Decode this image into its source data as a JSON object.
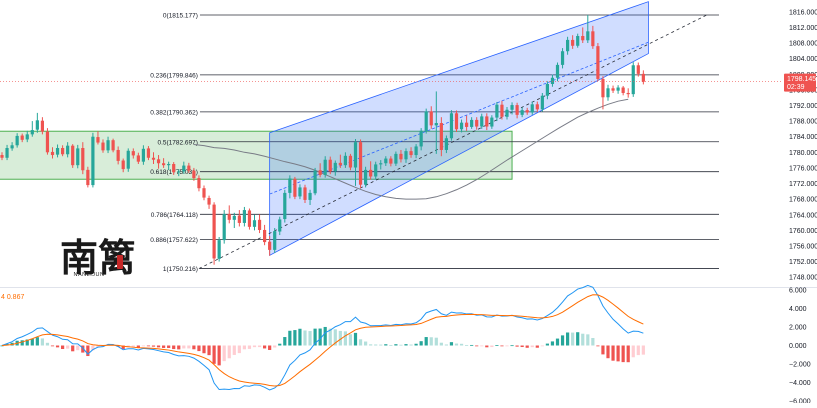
{
  "chart_data": [
    {
      "type": "candlestick",
      "y_axis_ticks": [
        "1816.000",
        "1812.000",
        "1808.000",
        "1804.000",
        "1800.000",
        "1796.000",
        "1792.000",
        "1788.000",
        "1784.000",
        "1780.000",
        "1776.000",
        "1772.000",
        "1768.000",
        "1764.000",
        "1760.000",
        "1756.000",
        "1752.000",
        "1748.000"
      ],
      "ylim": [
        1746.0,
        1818.0
      ],
      "price_tag": {
        "value": "1798.145",
        "countdown": "02:39"
      },
      "fib_levels": [
        {
          "label": "0(1815.177)",
          "value": 1815.177
        },
        {
          "label": "0.236(1799.846)",
          "value": 1799.846
        },
        {
          "label": "0.382(1790.362)",
          "value": 1790.362
        },
        {
          "label": "0.5(1782.697)",
          "value": 1782.697
        },
        {
          "label": "0.618(1775.031)",
          "value": 1775.031
        },
        {
          "label": "0.786(1764.118)",
          "value": 1764.118
        },
        {
          "label": "0.886(1757.622)",
          "value": 1757.622
        },
        {
          "label": "1(1750.216)",
          "value": 1750.216
        }
      ],
      "consolidation_box": {
        "from_bar": 0,
        "to_bar": 101,
        "high": 1785.4,
        "low": 1773.1
      },
      "channel": {
        "from_bar": 53,
        "to_bar": 128,
        "upper_start": 1785.0,
        "upper_end": 1818.6,
        "lower_start": 1753.6,
        "lower_end": 1805.3,
        "mid_end": 1808.2
      },
      "trend_line": {
        "from_bar": 39,
        "to_bar": 139,
        "start": 1750.2,
        "end": 1815.2
      },
      "moving_average": [
        1782,
        1781.7,
        1781.2,
        1781,
        1780.6,
        1780,
        1779.6,
        1779,
        1778.3,
        1777.6,
        1777,
        1776.3,
        1775.4,
        1774.3,
        1773.2,
        1772.1,
        1771,
        1770,
        1769.2,
        1768.6,
        1768.2,
        1768,
        1768,
        1768.1,
        1768.6,
        1769.4,
        1770.4,
        1771.6,
        1773,
        1774.6,
        1776.3,
        1778,
        1779.6,
        1781.2,
        1782.8,
        1784.4,
        1786,
        1787.5,
        1789,
        1790.2,
        1791.3,
        1792.3,
        1793.1,
        1793.6
      ],
      "ma_start_bar": 38,
      "ohlc": [
        [
          1779.3,
          1780.0,
          1778.0,
          1778.6
        ],
        [
          1778.6,
          1781.9,
          1778.0,
          1781.1
        ],
        [
          1781.0,
          1782.6,
          1780.4,
          1781.8
        ],
        [
          1781.8,
          1784.9,
          1781.2,
          1784.2
        ],
        [
          1784.3,
          1784.8,
          1782.6,
          1783.2
        ],
        [
          1783.3,
          1785.5,
          1782.6,
          1784.6
        ],
        [
          1784.6,
          1788.0,
          1784.0,
          1785.7
        ],
        [
          1785.8,
          1790.1,
          1785.0,
          1788.2
        ],
        [
          1788.1,
          1789.0,
          1784.6,
          1785.3
        ],
        [
          1785.3,
          1786.2,
          1779.4,
          1780.0
        ],
        [
          1780.1,
          1781.3,
          1778.4,
          1779.3
        ],
        [
          1779.4,
          1782.0,
          1778.7,
          1781.1
        ],
        [
          1781.1,
          1781.8,
          1779.0,
          1779.5
        ],
        [
          1779.5,
          1782.6,
          1778.7,
          1781.7
        ],
        [
          1781.7,
          1782.1,
          1776.0,
          1776.7
        ],
        [
          1776.7,
          1781.9,
          1775.9,
          1781.0
        ],
        [
          1781.1,
          1782.6,
          1774.4,
          1775.4
        ],
        [
          1775.5,
          1776.3,
          1771.0,
          1771.6
        ],
        [
          1771.6,
          1785.0,
          1771.0,
          1784.0
        ],
        [
          1783.9,
          1785.4,
          1782.0,
          1782.5
        ],
        [
          1782.5,
          1783.3,
          1779.9,
          1780.5
        ],
        [
          1780.5,
          1784.0,
          1779.8,
          1783.1
        ],
        [
          1783.1,
          1783.5,
          1780.0,
          1780.5
        ],
        [
          1780.6,
          1781.5,
          1776.9,
          1777.8
        ],
        [
          1777.9,
          1778.4,
          1774.9,
          1775.7
        ],
        [
          1775.8,
          1781.0,
          1775.0,
          1780.4
        ],
        [
          1780.3,
          1781.0,
          1778.4,
          1779.2
        ],
        [
          1779.2,
          1779.9,
          1777.0,
          1777.6
        ],
        [
          1777.6,
          1781.8,
          1776.8,
          1780.9
        ],
        [
          1781.0,
          1781.6,
          1778.0,
          1778.6
        ],
        [
          1778.6,
          1780.0,
          1777.0,
          1778.1
        ],
        [
          1778.2,
          1779.3,
          1775.8,
          1777.2
        ],
        [
          1777.2,
          1778.5,
          1776.0,
          1776.7
        ],
        [
          1776.7,
          1777.6,
          1775.5,
          1777.0
        ],
        [
          1777.0,
          1777.5,
          1774.2,
          1774.9
        ],
        [
          1774.9,
          1775.7,
          1773.9,
          1775.1
        ],
        [
          1775.1,
          1777.6,
          1774.5,
          1776.6
        ],
        [
          1776.6,
          1777.3,
          1774.7,
          1775.3
        ],
        [
          1775.3,
          1776.0,
          1772.7,
          1773.4
        ],
        [
          1773.4,
          1774.1,
          1770.0,
          1770.8
        ],
        [
          1770.8,
          1771.5,
          1767.7,
          1768.4
        ],
        [
          1768.3,
          1768.9,
          1765.5,
          1766.6
        ],
        [
          1766.6,
          1767.2,
          1751.2,
          1752.8
        ],
        [
          1752.7,
          1758.3,
          1752.0,
          1757.5
        ],
        [
          1757.5,
          1765.2,
          1756.6,
          1764.2
        ],
        [
          1764.2,
          1766.4,
          1761.8,
          1762.7
        ],
        [
          1762.7,
          1764.5,
          1760.6,
          1763.7
        ],
        [
          1763.8,
          1765.2,
          1761.0,
          1761.9
        ],
        [
          1761.9,
          1766.0,
          1761.0,
          1765.2
        ],
        [
          1765.1,
          1765.6,
          1760.2,
          1760.9
        ],
        [
          1760.9,
          1764.0,
          1760.0,
          1762.6
        ],
        [
          1762.7,
          1764.1,
          1759.3,
          1760.1
        ],
        [
          1760.1,
          1761.4,
          1756.2,
          1757.0
        ],
        [
          1757.1,
          1758.6,
          1753.5,
          1755.0
        ],
        [
          1755.0,
          1760.6,
          1754.2,
          1759.8
        ],
        [
          1759.7,
          1763.5,
          1758.8,
          1762.8
        ],
        [
          1762.9,
          1770.4,
          1762.0,
          1769.6
        ],
        [
          1769.6,
          1774.1,
          1768.2,
          1773.3
        ],
        [
          1773.2,
          1773.7,
          1768.0,
          1768.6
        ],
        [
          1768.7,
          1771.8,
          1768.0,
          1771.0
        ],
        [
          1771.0,
          1771.7,
          1767.0,
          1767.8
        ],
        [
          1767.8,
          1770.4,
          1766.5,
          1769.6
        ],
        [
          1769.5,
          1776.0,
          1769.0,
          1775.3
        ],
        [
          1775.4,
          1777.2,
          1773.6,
          1774.2
        ],
        [
          1774.2,
          1779.0,
          1773.5,
          1778.1
        ],
        [
          1778.1,
          1778.9,
          1774.4,
          1775.1
        ],
        [
          1775.1,
          1777.9,
          1774.0,
          1777.3
        ],
        [
          1777.3,
          1779.4,
          1776.0,
          1776.7
        ],
        [
          1776.7,
          1780.0,
          1776.0,
          1779.1
        ],
        [
          1779.1,
          1779.6,
          1775.4,
          1776.1
        ],
        [
          1776.1,
          1783.4,
          1771.4,
          1782.6
        ],
        [
          1782.6,
          1783.3,
          1770.8,
          1771.7
        ],
        [
          1771.7,
          1776.3,
          1771.0,
          1775.5
        ],
        [
          1775.5,
          1777.7,
          1773.0,
          1773.8
        ],
        [
          1773.8,
          1777.6,
          1773.0,
          1776.9
        ],
        [
          1776.9,
          1778.0,
          1775.6,
          1777.2
        ],
        [
          1777.2,
          1779.0,
          1776.5,
          1778.4
        ],
        [
          1778.4,
          1779.0,
          1776.4,
          1777.1
        ],
        [
          1777.1,
          1780.2,
          1776.5,
          1779.6
        ],
        [
          1779.6,
          1780.6,
          1777.4,
          1778.2
        ],
        [
          1778.2,
          1781.0,
          1777.3,
          1780.3
        ],
        [
          1780.3,
          1781.3,
          1778.6,
          1779.3
        ],
        [
          1779.3,
          1782.1,
          1778.5,
          1781.5
        ],
        [
          1781.5,
          1786.2,
          1780.5,
          1785.5
        ],
        [
          1785.5,
          1791.2,
          1784.8,
          1790.5
        ],
        [
          1790.5,
          1791.8,
          1786.0,
          1786.9
        ],
        [
          1786.9,
          1795.6,
          1779.6,
          1787.5
        ],
        [
          1787.5,
          1789.0,
          1779.0,
          1780.6
        ],
        [
          1780.6,
          1784.3,
          1779.8,
          1783.6
        ],
        [
          1783.6,
          1790.8,
          1783.0,
          1790.0
        ],
        [
          1790.0,
          1790.7,
          1785.2,
          1785.9
        ],
        [
          1785.9,
          1788.4,
          1785.1,
          1787.6
        ],
        [
          1787.6,
          1789.4,
          1785.5,
          1786.5
        ],
        [
          1786.5,
          1789.0,
          1786.0,
          1788.3
        ],
        [
          1788.3,
          1789.0,
          1785.8,
          1786.6
        ],
        [
          1786.6,
          1789.9,
          1786.0,
          1789.2
        ],
        [
          1789.2,
          1790.0,
          1785.7,
          1786.6
        ],
        [
          1786.6,
          1789.5,
          1786.0,
          1788.9
        ],
        [
          1788.9,
          1792.9,
          1788.0,
          1792.2
        ],
        [
          1792.2,
          1793.2,
          1788.4,
          1789.1
        ],
        [
          1789.1,
          1791.6,
          1788.4,
          1790.9
        ],
        [
          1790.9,
          1792.8,
          1789.7,
          1792.1
        ],
        [
          1792.1,
          1792.7,
          1788.7,
          1789.6
        ],
        [
          1789.6,
          1791.5,
          1789.0,
          1790.8
        ],
        [
          1790.8,
          1791.4,
          1789.6,
          1790.2
        ],
        [
          1790.2,
          1793.0,
          1789.6,
          1792.3
        ],
        [
          1792.3,
          1793.0,
          1790.3,
          1791.0
        ],
        [
          1791.0,
          1795.2,
          1790.4,
          1794.5
        ],
        [
          1794.5,
          1798.2,
          1793.6,
          1797.5
        ],
        [
          1797.5,
          1799.9,
          1796.8,
          1799.1
        ],
        [
          1799.1,
          1803.0,
          1798.2,
          1802.4
        ],
        [
          1802.4,
          1806.7,
          1801.5,
          1805.9
        ],
        [
          1805.9,
          1809.6,
          1805.0,
          1808.8
        ],
        [
          1808.8,
          1810.0,
          1806.5,
          1807.3
        ],
        [
          1807.3,
          1810.4,
          1806.8,
          1809.8
        ],
        [
          1809.8,
          1812.0,
          1808.0,
          1808.7
        ],
        [
          1808.7,
          1815.2,
          1808.0,
          1811.0
        ],
        [
          1811.0,
          1812.4,
          1806.5,
          1807.2
        ],
        [
          1807.2,
          1808.0,
          1798.3,
          1798.8
        ],
        [
          1798.8,
          1799.5,
          1791.0,
          1794.1
        ],
        [
          1794.1,
          1797.3,
          1793.2,
          1796.4
        ],
        [
          1796.4,
          1797.1,
          1795.2,
          1795.8
        ],
        [
          1795.8,
          1797.2,
          1795.0,
          1796.6
        ],
        [
          1796.6,
          1797.0,
          1794.6,
          1795.2
        ],
        [
          1795.2,
          1796.4,
          1794.0,
          1794.9
        ],
        [
          1794.9,
          1803.1,
          1794.2,
          1802.3
        ],
        [
          1802.3,
          1803.0,
          1799.4,
          1800.1
        ],
        [
          1800.1,
          1801.0,
          1797.4,
          1798.1
        ]
      ]
    },
    {
      "type": "macd",
      "legend": "4 0.867",
      "y_axis_ticks": [
        "6.000",
        "4.000",
        "2.000",
        "0.000",
        "−2.000",
        "−4.000",
        "−6.000"
      ],
      "ylim": [
        -6.0,
        6.0
      ],
      "colors": {
        "macd": "#2196f3",
        "signal": "#ff6d00",
        "hist_pos_strong": "#26a69a",
        "hist_pos_weak": "#b2dfdb",
        "hist_neg_strong": "#ef5350",
        "hist_neg_weak": "#ffcdd2"
      }
    }
  ],
  "watermark": {
    "chars": "南篱",
    "sub": "NANLIJUN"
  }
}
